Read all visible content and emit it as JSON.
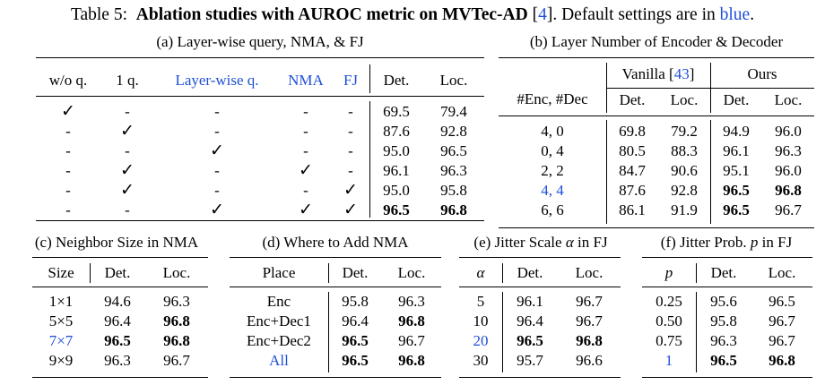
{
  "caption": {
    "label": "Table 5:",
    "bold": "Ablation studies with AUROC metric on MVTec-AD",
    "ref_open": "[",
    "ref": "4",
    "ref_close": "].",
    "rest": "Default settings are in",
    "blue_word": "blue",
    "end": "."
  },
  "table_a": {
    "title": "(a) Layer-wise query, NMA, & FJ",
    "headers": [
      "w/o q.",
      "1 q.",
      "Layer-wise q.",
      "NMA",
      "FJ",
      "Det.",
      "Loc."
    ],
    "rows": [
      [
        "✓",
        "-",
        "-",
        "-",
        "-",
        "69.5",
        "79.4"
      ],
      [
        "-",
        "✓",
        "-",
        "-",
        "-",
        "87.6",
        "92.8"
      ],
      [
        "-",
        "-",
        "✓",
        "-",
        "-",
        "95.0",
        "96.5"
      ],
      [
        "-",
        "✓",
        "-",
        "✓",
        "-",
        "96.1",
        "96.3"
      ],
      [
        "-",
        "✓",
        "-",
        "-",
        "✓",
        "95.0",
        "95.8"
      ],
      [
        "-",
        "-",
        "✓",
        "✓",
        "✓",
        "96.5",
        "96.8"
      ]
    ]
  },
  "table_b": {
    "title": "(b) Layer Number of Encoder & Decoder",
    "row_header": "#Enc, #Dec",
    "group_vanilla": "Vanilla",
    "vanilla_ref_open": "[",
    "vanilla_ref": "43",
    "vanilla_ref_close": "]",
    "group_ours": "Ours",
    "sub_headers": [
      "Det.",
      "Loc.",
      "Det.",
      "Loc."
    ],
    "rows": [
      [
        "4, 0",
        "69.8",
        "79.2",
        "94.9",
        "96.0"
      ],
      [
        "0, 4",
        "80.5",
        "88.3",
        "96.1",
        "96.3"
      ],
      [
        "2, 2",
        "84.7",
        "90.6",
        "95.1",
        "96.0"
      ],
      [
        "4, 4",
        "87.6",
        "92.8",
        "96.5",
        "96.8"
      ],
      [
        "6, 6",
        "86.1",
        "91.9",
        "96.5",
        "96.7"
      ]
    ]
  },
  "table_c": {
    "title": "(c) Neighbor Size in NMA",
    "headers": [
      "Size",
      "Det.",
      "Loc."
    ],
    "rows": [
      [
        "1×1",
        "94.6",
        "96.3"
      ],
      [
        "5×5",
        "96.4",
        "96.8"
      ],
      [
        "7×7",
        "96.5",
        "96.8"
      ],
      [
        "9×9",
        "96.3",
        "96.7"
      ]
    ]
  },
  "table_d": {
    "title": "(d) Where to Add NMA",
    "headers": [
      "Place",
      "Det.",
      "Loc."
    ],
    "rows": [
      [
        "Enc",
        "95.8",
        "96.3"
      ],
      [
        "Enc+Dec1",
        "96.4",
        "96.8"
      ],
      [
        "Enc+Dec2",
        "96.5",
        "96.7"
      ],
      [
        "All",
        "96.5",
        "96.8"
      ]
    ]
  },
  "table_e": {
    "title_pre": "(e) Jitter Scale",
    "title_sym": "α",
    "title_post": "in FJ",
    "headers": [
      "α",
      "Det.",
      "Loc."
    ],
    "rows": [
      [
        "5",
        "96.1",
        "96.7"
      ],
      [
        "10",
        "96.4",
        "96.7"
      ],
      [
        "20",
        "96.5",
        "96.8"
      ],
      [
        "30",
        "95.7",
        "96.6"
      ]
    ]
  },
  "table_f": {
    "title_pre": "(f) Jitter Prob.",
    "title_sym": "p",
    "title_post": "in FJ",
    "headers": [
      "p",
      "Det.",
      "Loc."
    ],
    "rows": [
      [
        "0.25",
        "95.6",
        "96.5"
      ],
      [
        "0.50",
        "95.8",
        "96.7"
      ],
      [
        "0.75",
        "96.3",
        "96.7"
      ],
      [
        "1",
        "96.5",
        "96.8"
      ]
    ]
  },
  "colors": {
    "default_setting": "#1f4fd8"
  }
}
